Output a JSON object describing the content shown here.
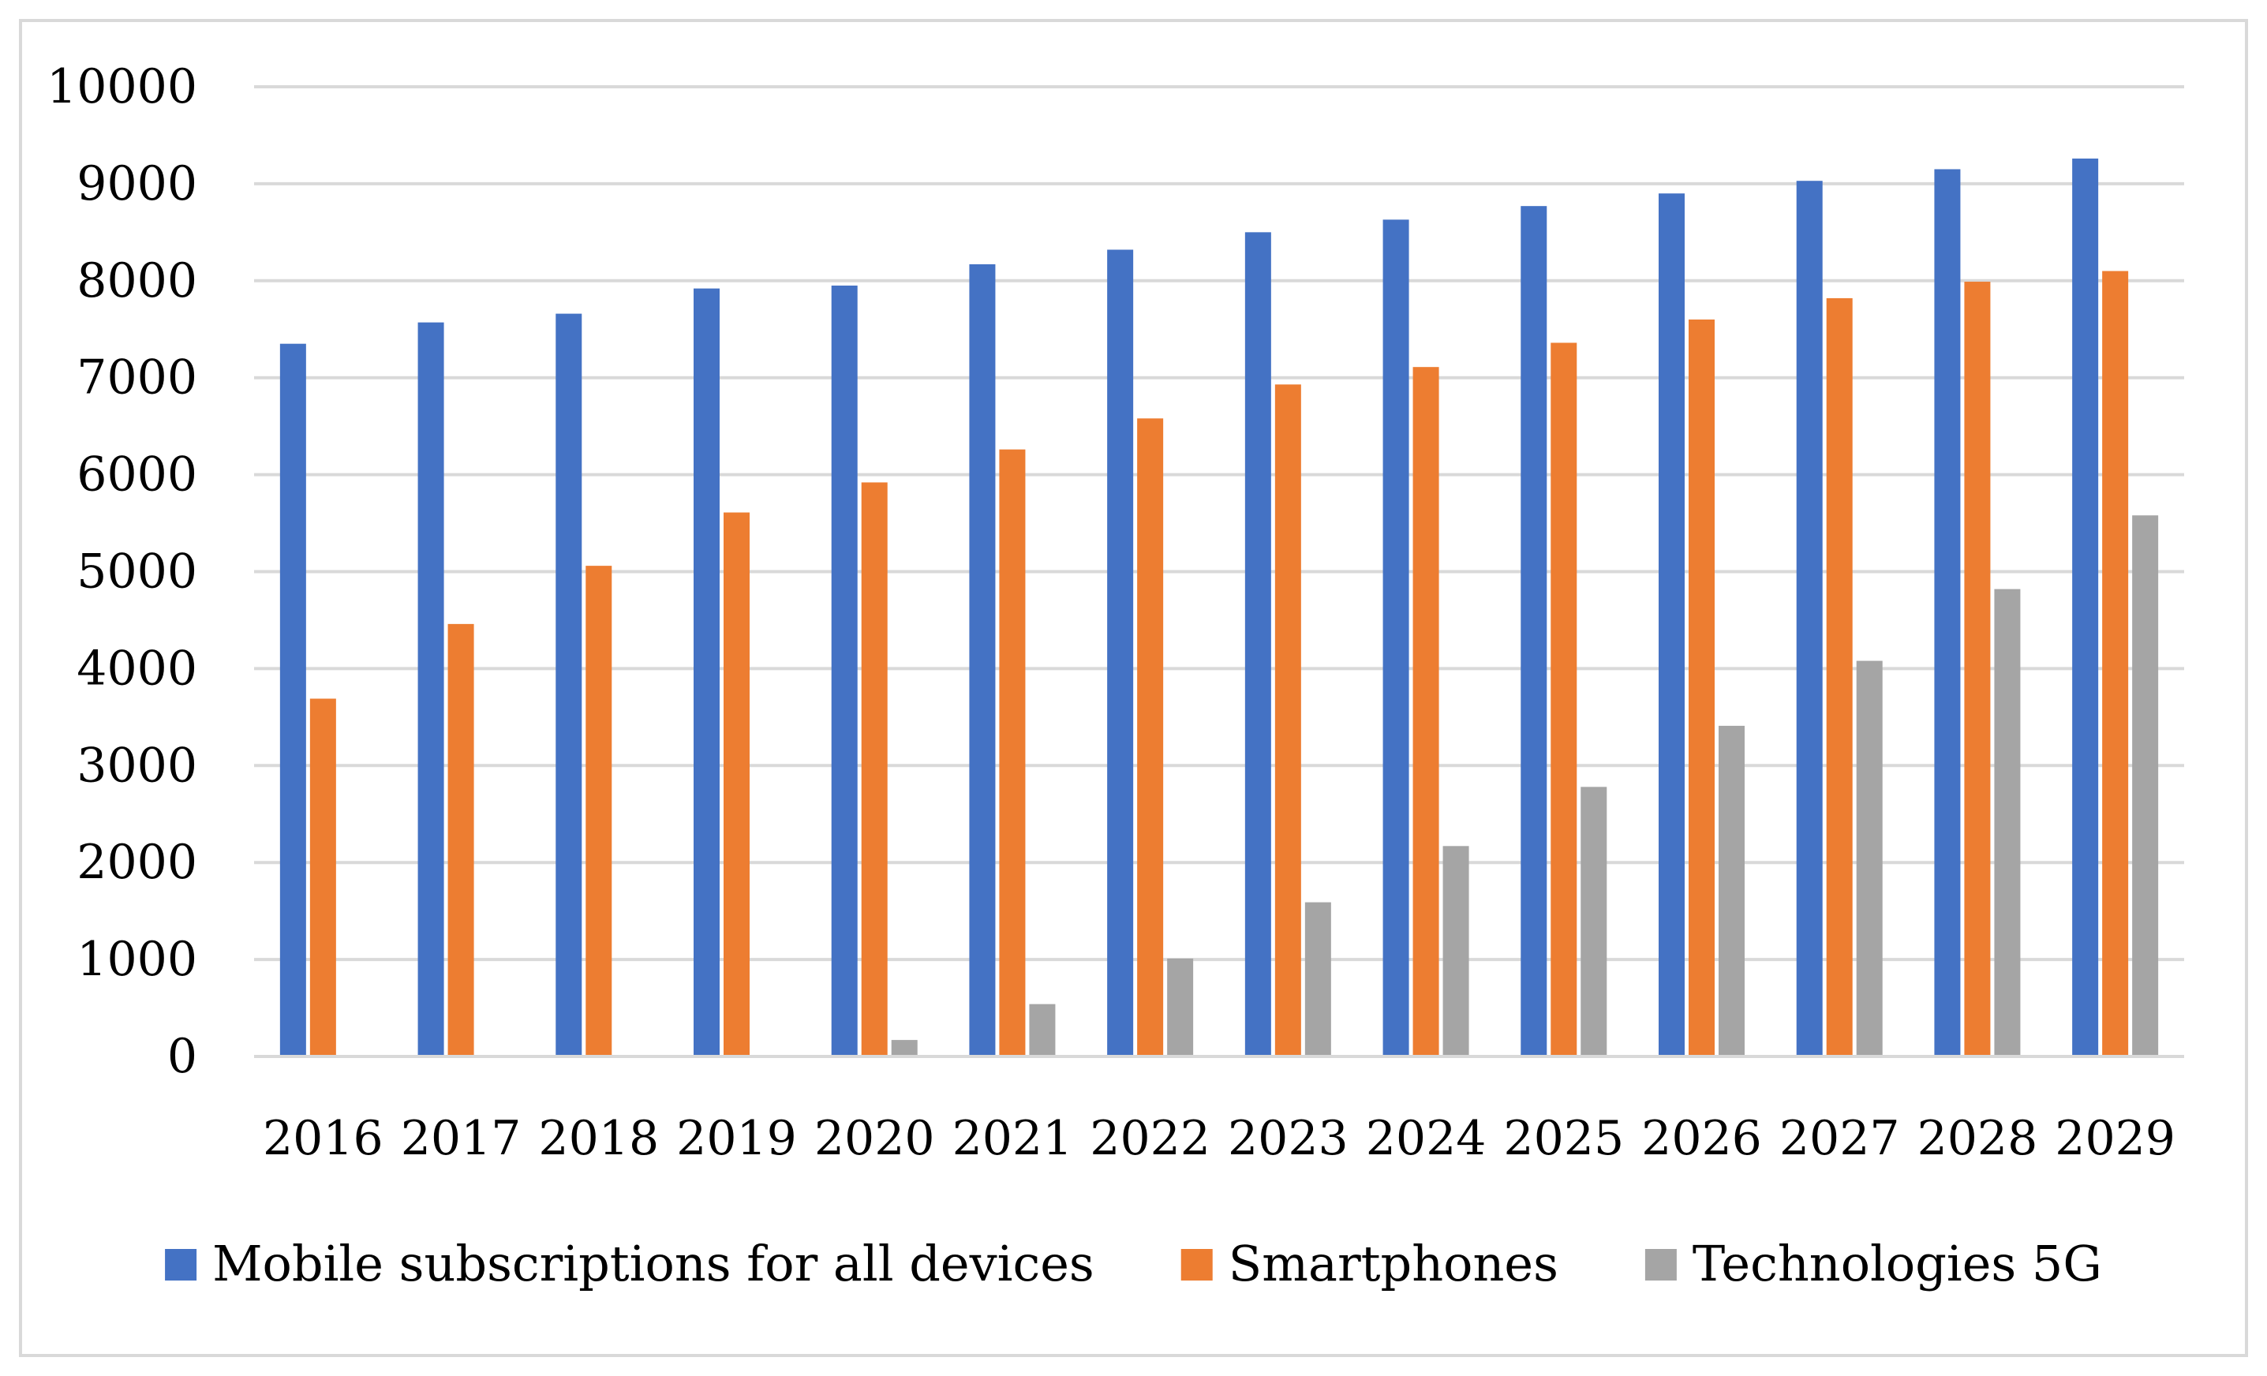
{
  "chart_data": {
    "type": "bar",
    "title": "",
    "xlabel": "",
    "ylabel": "",
    "ylim": [
      0,
      10000
    ],
    "yticks": [
      "0",
      "1000",
      "2000",
      "3000",
      "4000",
      "5000",
      "6000",
      "7000",
      "8000",
      "9000",
      "10000"
    ],
    "grid": true,
    "legend_position": "bottom",
    "categories": [
      "2016",
      "2017",
      "2018",
      "2019",
      "2020",
      "2021",
      "2022",
      "2023",
      "2024",
      "2025",
      "2026",
      "2027",
      "2028",
      "2029"
    ],
    "series": [
      {
        "name": "Mobile subscriptions for all devices",
        "color": "#4472c4",
        "values": [
          7350,
          7570,
          7660,
          7920,
          7950,
          8170,
          8320,
          8500,
          8630,
          8770,
          8900,
          9030,
          9150,
          9260
        ]
      },
      {
        "name": "Smartphones",
        "color": "#ed7d31",
        "values": [
          3690,
          4460,
          5060,
          5610,
          5920,
          6260,
          6580,
          6930,
          7110,
          7360,
          7600,
          7820,
          7990,
          8100
        ]
      },
      {
        "name": "Technologies 5G",
        "color": "#a5a5a5",
        "values": [
          0,
          0,
          0,
          0,
          170,
          540,
          1010,
          1590,
          2170,
          2780,
          3410,
          4080,
          4820,
          5580
        ]
      }
    ]
  }
}
